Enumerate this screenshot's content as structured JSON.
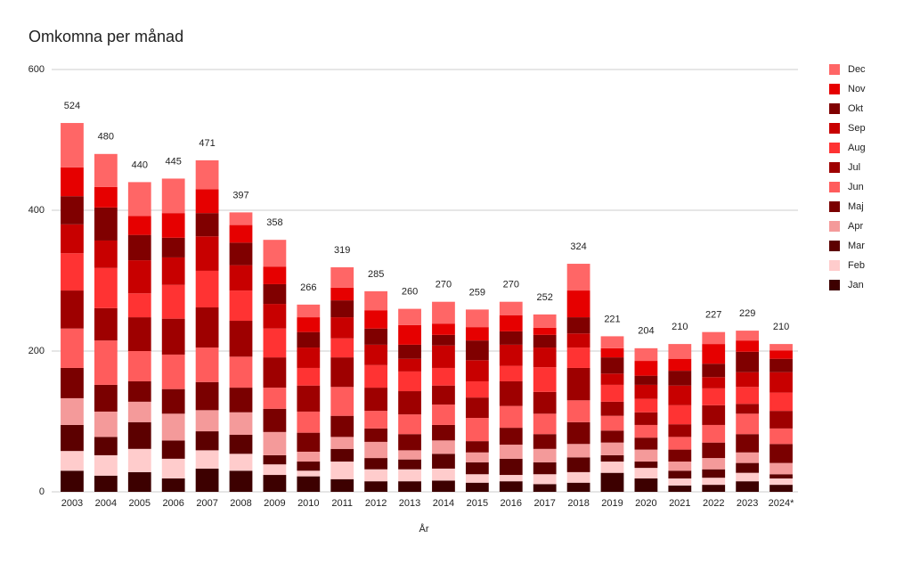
{
  "chart_data": {
    "type": "stacked-bar",
    "title": "Omkomna per månad",
    "x_label": "År",
    "categories": [
      "2003",
      "2004",
      "2005",
      "2006",
      "2007",
      "2008",
      "2009",
      "2010",
      "2011",
      "2012",
      "2013",
      "2014",
      "2015",
      "2016",
      "2017",
      "2018",
      "2019",
      "2020",
      "2021",
      "2022",
      "2023",
      "2024*"
    ],
    "totals": [
      524,
      480,
      440,
      445,
      471,
      397,
      358,
      266,
      319,
      285,
      260,
      270,
      259,
      270,
      252,
      324,
      221,
      204,
      210,
      227,
      229,
      210
    ],
    "ylim": [
      0,
      600
    ],
    "yticks": [
      0,
      200,
      400,
      600
    ],
    "grid": true,
    "series": [
      {
        "name": "Jan",
        "color": "#3d0000",
        "values": [
          30,
          23,
          28,
          19,
          33,
          30,
          24,
          22,
          18,
          15,
          15,
          16,
          13,
          15,
          11,
          13,
          27,
          19,
          9,
          10,
          15,
          10
        ]
      },
      {
        "name": "Feb",
        "color": "#ffcccc",
        "values": [
          28,
          29,
          33,
          28,
          26,
          24,
          15,
          8,
          25,
          17,
          17,
          17,
          12,
          9,
          14,
          15,
          16,
          15,
          10,
          10,
          12,
          9
        ]
      },
      {
        "name": "Mar",
        "color": "#5c0000",
        "values": [
          37,
          26,
          38,
          26,
          27,
          27,
          13,
          13,
          18,
          16,
          14,
          21,
          17,
          23,
          17,
          21,
          9,
          9,
          11,
          12,
          14,
          6
        ]
      },
      {
        "name": "Apr",
        "color": "#f49a9a",
        "values": [
          38,
          36,
          29,
          38,
          30,
          32,
          33,
          14,
          17,
          23,
          13,
          19,
          14,
          20,
          19,
          19,
          18,
          17,
          13,
          16,
          15,
          16
        ]
      },
      {
        "name": "Maj",
        "color": "#7a0000",
        "values": [
          43,
          38,
          29,
          35,
          40,
          35,
          33,
          27,
          30,
          19,
          23,
          22,
          16,
          24,
          21,
          31,
          17,
          17,
          17,
          22,
          26,
          27
        ]
      },
      {
        "name": "Jun",
        "color": "#ff5c5c",
        "values": [
          56,
          63,
          43,
          49,
          49,
          44,
          30,
          30,
          41,
          25,
          28,
          29,
          33,
          31,
          29,
          31,
          21,
          18,
          18,
          25,
          29,
          22
        ]
      },
      {
        "name": "Jul",
        "color": "#9e0000",
        "values": [
          54,
          46,
          48,
          51,
          57,
          51,
          43,
          37,
          42,
          33,
          33,
          27,
          29,
          35,
          31,
          46,
          20,
          18,
          18,
          28,
          14,
          25
        ]
      },
      {
        "name": "Aug",
        "color": "#ff3333",
        "values": [
          53,
          57,
          34,
          48,
          52,
          43,
          41,
          25,
          27,
          32,
          28,
          25,
          23,
          22,
          35,
          29,
          24,
          19,
          27,
          24,
          24,
          26
        ]
      },
      {
        "name": "Sep",
        "color": "#c80000",
        "values": [
          41,
          39,
          47,
          39,
          49,
          36,
          35,
          29,
          30,
          29,
          18,
          32,
          30,
          30,
          28,
          20,
          16,
          20,
          28,
          16,
          21,
          29
        ]
      },
      {
        "name": "Okt",
        "color": "#800000",
        "values": [
          40,
          47,
          36,
          28,
          33,
          32,
          28,
          22,
          24,
          23,
          20,
          15,
          28,
          19,
          18,
          23,
          23,
          13,
          21,
          19,
          29,
          19
        ]
      },
      {
        "name": "Nov",
        "color": "#e60000",
        "values": [
          41,
          29,
          27,
          35,
          34,
          25,
          25,
          21,
          18,
          26,
          28,
          16,
          19,
          23,
          10,
          38,
          13,
          21,
          17,
          28,
          16,
          12
        ]
      },
      {
        "name": "Dec",
        "color": "#ff6666",
        "values": [
          63,
          47,
          48,
          49,
          41,
          18,
          38,
          18,
          29,
          27,
          23,
          31,
          25,
          19,
          19,
          38,
          17,
          18,
          21,
          17,
          14,
          9
        ]
      }
    ]
  }
}
